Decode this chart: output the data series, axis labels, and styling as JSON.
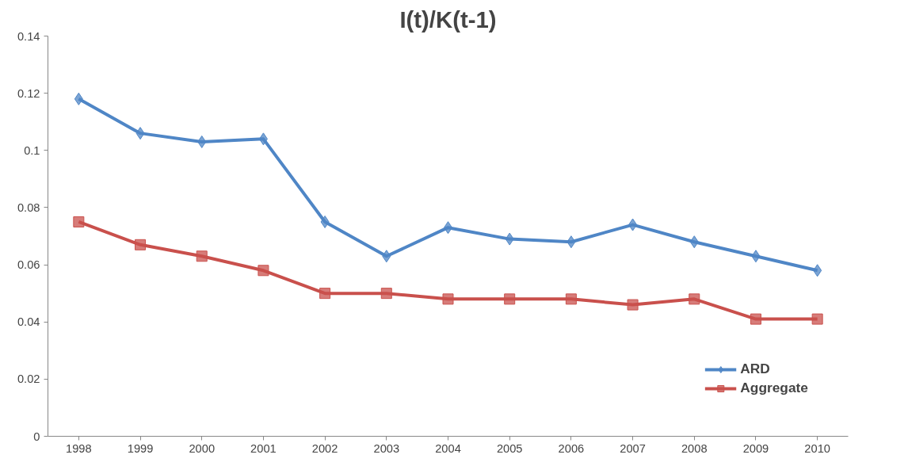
{
  "chart_data": {
    "type": "line",
    "title": "I(t)/K(t-1)",
    "categories": [
      "1998",
      "1999",
      "2000",
      "2001",
      "2002",
      "2003",
      "2004",
      "2005",
      "2006",
      "2007",
      "2008",
      "2009",
      "2010"
    ],
    "series": [
      {
        "name": "ARD",
        "color": "#4f86c6",
        "marker": "diamond",
        "values": [
          0.118,
          0.106,
          0.103,
          0.104,
          0.075,
          0.063,
          0.073,
          0.069,
          0.068,
          0.074,
          0.068,
          0.063,
          0.058
        ]
      },
      {
        "name": "Aggregate",
        "color": "#c9504c",
        "marker": "square",
        "values": [
          0.075,
          0.067,
          0.063,
          0.058,
          0.05,
          0.05,
          0.048,
          0.048,
          0.048,
          0.046,
          0.048,
          0.041,
          0.041
        ]
      }
    ],
    "ylim": [
      0,
      0.14
    ],
    "yticks": [
      0,
      0.02,
      0.04,
      0.06,
      0.08,
      0.1,
      0.12,
      0.14
    ],
    "grid": false,
    "legend": "bottom right",
    "line_style": "solid"
  }
}
